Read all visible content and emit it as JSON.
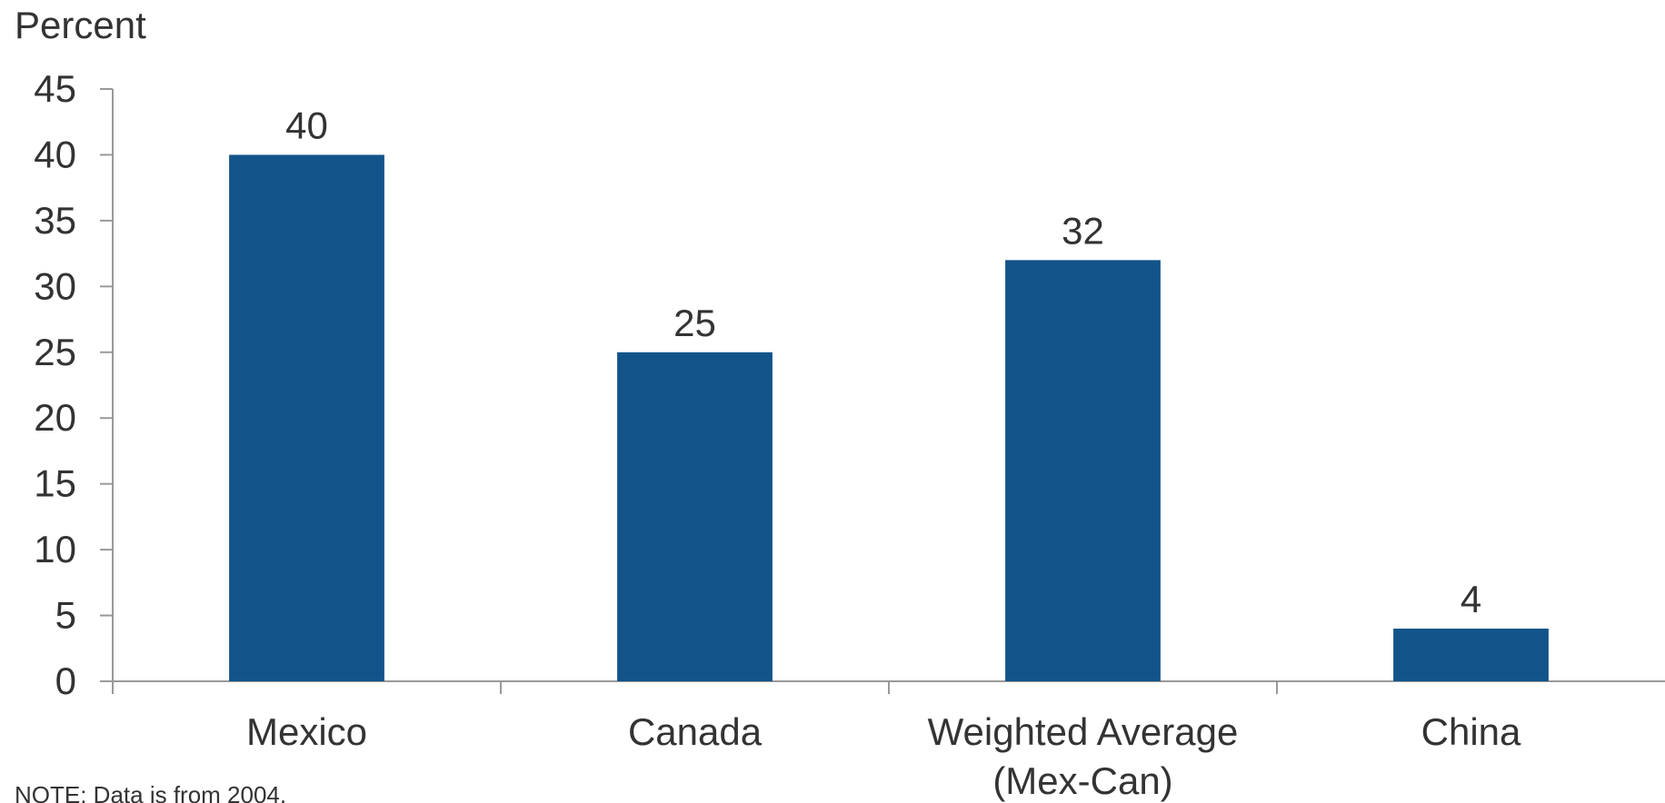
{
  "chart_data": {
    "type": "bar",
    "ylabel": "Percent",
    "categories": [
      "Mexico",
      "Canada",
      "Weighted Average (Mex-Can)",
      "China"
    ],
    "category_lines": [
      [
        "Mexico"
      ],
      [
        "Canada"
      ],
      [
        "Weighted Average",
        "(Mex-Can)"
      ],
      [
        "China"
      ]
    ],
    "values": [
      40,
      25,
      32,
      4
    ],
    "data_labels": [
      "40",
      "25",
      "32",
      "4"
    ],
    "ylim": [
      0,
      45
    ],
    "yticks": [
      0,
      5,
      10,
      15,
      20,
      25,
      30,
      35,
      40,
      45
    ],
    "grid": false,
    "legend": "none",
    "bar_color": "#12548a",
    "axis_color": "#999999",
    "text_color": "#333333"
  },
  "note": "NOTE: Data is from 2004."
}
